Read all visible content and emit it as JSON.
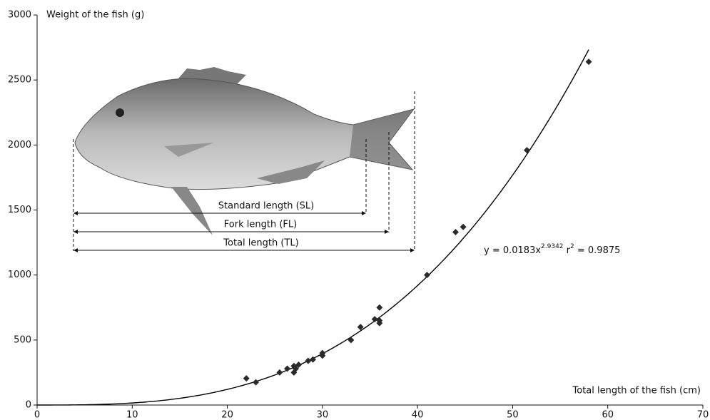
{
  "chart_data": {
    "type": "scatter",
    "y_label": "Weight of the fish (g)",
    "x_label": "Total length of the fish (cm)",
    "x": [
      22,
      23,
      25.5,
      26.3,
      27,
      27,
      27.2,
      27.5,
      28.5,
      29,
      30,
      30,
      33,
      34,
      35.5,
      36,
      36,
      36,
      41,
      44,
      44.8,
      51.5,
      58
    ],
    "values": [
      205,
      175,
      250,
      280,
      300,
      250,
      280,
      310,
      340,
      350,
      380,
      400,
      500,
      600,
      660,
      630,
      650,
      750,
      1000,
      1330,
      1370,
      1960,
      2640
    ],
    "color": "#2a2a2a",
    "fit": {
      "a": 0.0183,
      "b": 2.9342,
      "color": "#000000"
    },
    "equation": {
      "main": "y = 0.0183x",
      "exponent": "2.9342",
      "r": " r",
      "r_exponent": "2",
      "r_value": " = 0.9875"
    },
    "measures": [
      "Standard length (SL)",
      "Fork length (FL)",
      "Total length (TL)"
    ],
    "xlim": [
      0,
      70
    ],
    "xticks": [
      0,
      10,
      20,
      30,
      40,
      50,
      60,
      70
    ],
    "ylim": [
      0,
      3000
    ],
    "yticks": [
      0,
      500,
      1000,
      1500,
      2000,
      2500,
      3000
    ]
  }
}
